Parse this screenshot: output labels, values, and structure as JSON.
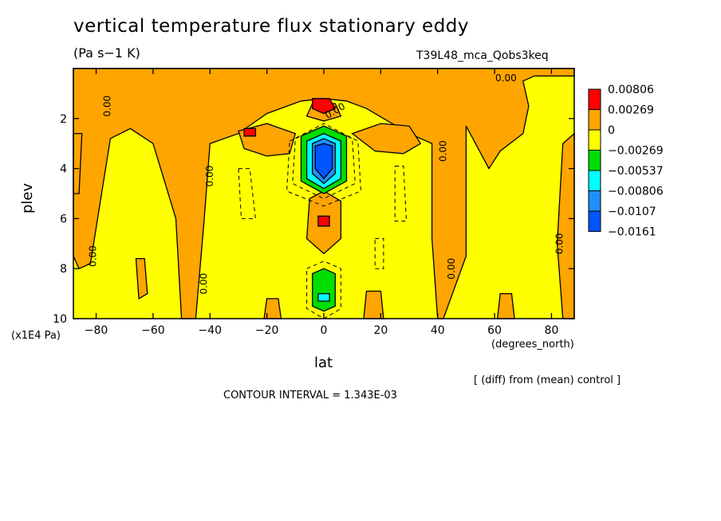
{
  "colors": {
    "yellow": "#ffff00",
    "orange": "#ffa500",
    "red": "#ff0000",
    "green": "#00dd00",
    "cyan": "#00ffff",
    "lightblue": "#1e90ff",
    "blue": "#0055ff"
  },
  "chart_data": {
    "type": "heatmap",
    "title": "vertical temperature flux stationary eddy",
    "units": "(Pa s−1 K)",
    "run_id": "T39L48_mca_Qobs3keq",
    "xlabel": "lat",
    "xunits": "(degrees_north)",
    "ylabel": "plev",
    "yscale_label": "(x1E4 Pa)",
    "x_range": [
      -88,
      88
    ],
    "y_range": [
      0,
      10
    ],
    "y_inverted": true,
    "x_ticks": [
      "−80",
      "−60",
      "−40",
      "−20",
      "0",
      "20",
      "40",
      "60",
      "80"
    ],
    "x_tick_values": [
      -80,
      -60,
      -40,
      -20,
      0,
      20,
      40,
      60,
      80
    ],
    "y_ticks": [
      "2",
      "4",
      "6",
      "8",
      "10"
    ],
    "y_tick_values": [
      2,
      4,
      6,
      8,
      10
    ],
    "legend": {
      "levels": [
        "0.00806",
        "0.00269",
        "0",
        "−0.00269",
        "−0.00537",
        "−0.00806",
        "−0.0107",
        "−0.0161"
      ],
      "colors": [
        "#ff0000",
        "#ffa500",
        "#ffff00",
        "#00dd00",
        "#00ffff",
        "#1e90ff",
        "#0055ff"
      ]
    },
    "contour_label": "0.00",
    "contour_interval_text": "CONTOUR INTERVAL = 1.343E-03",
    "note": "[ (diff) from (mean) control ]",
    "regions": [
      {
        "fill": "orange",
        "points": [
          [
            -88,
            0
          ],
          [
            88,
            0
          ],
          [
            88,
            0.3
          ],
          [
            74,
            0.3
          ],
          [
            70,
            0.5
          ],
          [
            72,
            1.5
          ],
          [
            70,
            2.6
          ],
          [
            62,
            3.3
          ],
          [
            58,
            4
          ],
          [
            50,
            2.3
          ],
          [
            50,
            7.5
          ],
          [
            42,
            10
          ],
          [
            40,
            10
          ],
          [
            38,
            6.8
          ],
          [
            38,
            3
          ],
          [
            30,
            2.6
          ],
          [
            15,
            1.6
          ],
          [
            8,
            1.3
          ],
          [
            0,
            1.2
          ],
          [
            -8,
            1.3
          ],
          [
            -20,
            1.8
          ],
          [
            -30,
            2.6
          ],
          [
            -40,
            3
          ],
          [
            -42,
            6
          ],
          [
            -45,
            10
          ],
          [
            -50,
            10
          ],
          [
            -52,
            6
          ],
          [
            -60,
            3
          ],
          [
            -68,
            2.4
          ],
          [
            -75,
            2.8
          ],
          [
            -82,
            7.8
          ],
          [
            -86,
            8
          ],
          [
            -88,
            7.5
          ]
        ]
      },
      {
        "fill": "orange",
        "points": [
          [
            -30,
            2.5
          ],
          [
            -20,
            2.2
          ],
          [
            -10,
            2.6
          ],
          [
            -12,
            3.4
          ],
          [
            -20,
            3.5
          ],
          [
            -28,
            3.2
          ]
        ]
      },
      {
        "fill": "orange",
        "points": [
          [
            10,
            2.6
          ],
          [
            20,
            2.2
          ],
          [
            30,
            2.3
          ],
          [
            34,
            3
          ],
          [
            28,
            3.4
          ],
          [
            18,
            3.3
          ]
        ]
      },
      {
        "fill": "orange",
        "points": [
          [
            -4,
            1.4
          ],
          [
            4,
            1.4
          ],
          [
            6,
            1.9
          ],
          [
            0,
            2.1
          ],
          [
            -6,
            1.9
          ]
        ]
      },
      {
        "fill": "orange",
        "points": [
          [
            -5,
            5.2
          ],
          [
            0,
            4.9
          ],
          [
            6,
            5.3
          ],
          [
            6,
            6.8
          ],
          [
            0,
            7.4
          ],
          [
            -6,
            6.8
          ]
        ]
      },
      {
        "fill": "orange",
        "points": [
          [
            -88,
            2.6
          ],
          [
            -85,
            2.6
          ],
          [
            -86,
            5
          ],
          [
            -88,
            5
          ]
        ]
      },
      {
        "fill": "orange",
        "points": [
          [
            84,
            3
          ],
          [
            88,
            2.6
          ],
          [
            88,
            10
          ],
          [
            84,
            10
          ],
          [
            82,
            7
          ]
        ]
      },
      {
        "fill": "orange",
        "points": [
          [
            -66,
            7.6
          ],
          [
            -63,
            7.6
          ],
          [
            -62,
            9
          ],
          [
            -65,
            9.2
          ]
        ]
      },
      {
        "fill": "orange",
        "points": [
          [
            -20,
            9.2
          ],
          [
            -16,
            9.2
          ],
          [
            -15,
            10
          ],
          [
            -21,
            10
          ]
        ]
      },
      {
        "fill": "orange",
        "points": [
          [
            62,
            9
          ],
          [
            66,
            9
          ],
          [
            67,
            10
          ],
          [
            61,
            10
          ]
        ]
      },
      {
        "fill": "orange",
        "points": [
          [
            15,
            8.9
          ],
          [
            20,
            8.9
          ],
          [
            21,
            10
          ],
          [
            14,
            10
          ]
        ]
      },
      {
        "fill": "red",
        "points": [
          [
            -4,
            1.2
          ],
          [
            2,
            1.2
          ],
          [
            4,
            1.6
          ],
          [
            0,
            1.8
          ],
          [
            -4,
            1.6
          ]
        ]
      },
      {
        "fill": "red",
        "points": [
          [
            -28,
            2.4
          ],
          [
            -24,
            2.4
          ],
          [
            -24,
            2.7
          ],
          [
            -28,
            2.7
          ]
        ]
      },
      {
        "fill": "red",
        "points": [
          [
            -2,
            5.9
          ],
          [
            2,
            5.9
          ],
          [
            2,
            6.3
          ],
          [
            -2,
            6.3
          ]
        ]
      },
      {
        "fill": "green",
        "points": [
          [
            -8,
            2.7
          ],
          [
            0,
            2.3
          ],
          [
            8,
            2.7
          ],
          [
            8,
            4.5
          ],
          [
            0,
            5.0
          ],
          [
            -8,
            4.5
          ]
        ]
      },
      {
        "fill": "cyan",
        "points": [
          [
            -6,
            2.9
          ],
          [
            0,
            2.6
          ],
          [
            6,
            2.9
          ],
          [
            6,
            4.4
          ],
          [
            0,
            4.8
          ],
          [
            -6,
            4.4
          ]
        ]
      },
      {
        "fill": "lightblue",
        "points": [
          [
            -4,
            3.0
          ],
          [
            0,
            2.8
          ],
          [
            4,
            3.0
          ],
          [
            4,
            4.2
          ],
          [
            0,
            4.6
          ],
          [
            -4,
            4.2
          ]
        ]
      },
      {
        "fill": "blue",
        "points": [
          [
            -3,
            3.1
          ],
          [
            0,
            3.0
          ],
          [
            3,
            3.1
          ],
          [
            3,
            4.0
          ],
          [
            0,
            4.4
          ],
          [
            -3,
            4.0
          ]
        ]
      },
      {
        "fill": "green",
        "points": [
          [
            -4,
            8.2
          ],
          [
            0,
            8.0
          ],
          [
            4,
            8.2
          ],
          [
            4,
            9.5
          ],
          [
            0,
            9.7
          ],
          [
            -4,
            9.5
          ]
        ]
      },
      {
        "fill": "cyan",
        "points": [
          [
            -2,
            9.0
          ],
          [
            2,
            9.0
          ],
          [
            2,
            9.3
          ],
          [
            -2,
            9.3
          ]
        ]
      }
    ],
    "contour_labels": [
      {
        "x": -76,
        "y": 1.5,
        "rot": -90
      },
      {
        "x": -40,
        "y": 4.3,
        "rot": -90
      },
      {
        "x": -81,
        "y": 7.5,
        "rot": -90
      },
      {
        "x": -42,
        "y": 8.6,
        "rot": -90
      },
      {
        "x": 4,
        "y": 1.7,
        "rot": -30
      },
      {
        "x": 42,
        "y": 3.3,
        "rot": -90
      },
      {
        "x": 64,
        "y": 0.4,
        "rot": 0
      },
      {
        "x": 45,
        "y": 8.0,
        "rot": -90
      },
      {
        "x": 83,
        "y": 7.0,
        "rot": -90
      }
    ]
  }
}
